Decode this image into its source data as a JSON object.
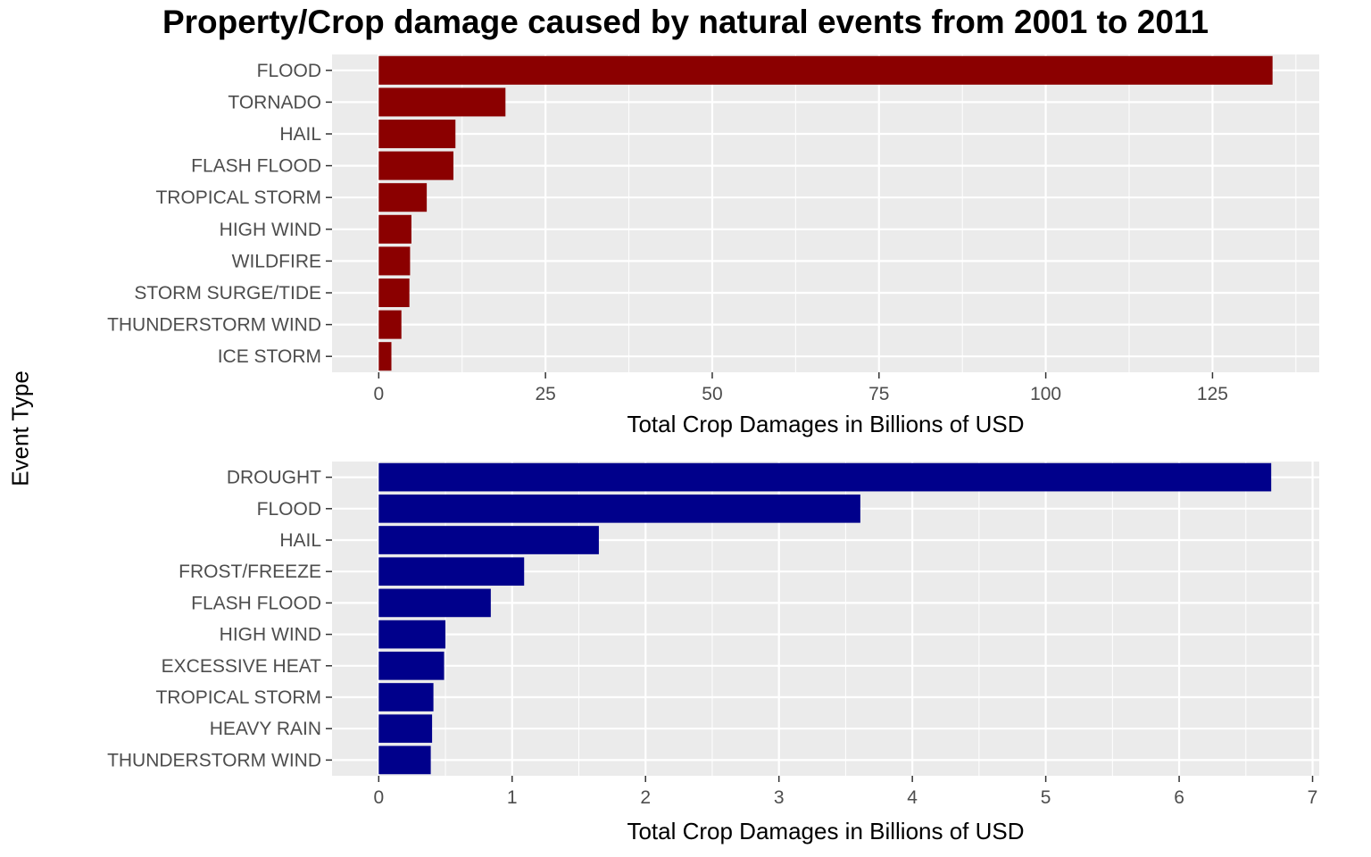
{
  "title": "Property/Crop damage caused by natural events from 2001 to 2011",
  "ylabel": "Event Type",
  "chart_data": [
    {
      "type": "bar",
      "orientation": "horizontal",
      "color": "#8B0000",
      "categories": [
        "FLOOD",
        "TORNADO",
        "HAIL",
        "FLASH FLOOD",
        "TROPICAL STORM",
        "HIGH WIND",
        "WILDFIRE",
        "STORM SURGE/TIDE",
        "THUNDERSTORM WIND",
        "ICE STORM"
      ],
      "values": [
        134,
        19,
        11.5,
        11.2,
        7.2,
        4.9,
        4.7,
        4.6,
        3.4,
        1.9
      ],
      "xlabel": "Total Crop Damages in Billions of USD",
      "xlim": [
        -7,
        141
      ],
      "xticks": [
        0,
        25,
        50,
        75,
        100,
        125
      ],
      "xtick_labels": [
        "0",
        "25",
        "50",
        "75",
        "100",
        "125"
      ],
      "grid": true
    },
    {
      "type": "bar",
      "orientation": "horizontal",
      "color": "#00008B",
      "categories": [
        "DROUGHT",
        "FLOOD",
        "HAIL",
        "FROST/FREEZE",
        "FLASH FLOOD",
        "HIGH WIND",
        "EXCESSIVE HEAT",
        "TROPICAL STORM",
        "HEAVY RAIN",
        "THUNDERSTORM WIND"
      ],
      "values": [
        6.69,
        3.61,
        1.65,
        1.09,
        0.84,
        0.5,
        0.49,
        0.41,
        0.4,
        0.39
      ],
      "xlabel": "Total Crop Damages in Billions of USD",
      "xlim": [
        -0.35,
        7.05
      ],
      "xticks": [
        0,
        1,
        2,
        3,
        4,
        5,
        6,
        7
      ],
      "xtick_labels": [
        "0",
        "1",
        "2",
        "3",
        "4",
        "5",
        "6",
        "7"
      ],
      "grid": true
    }
  ]
}
